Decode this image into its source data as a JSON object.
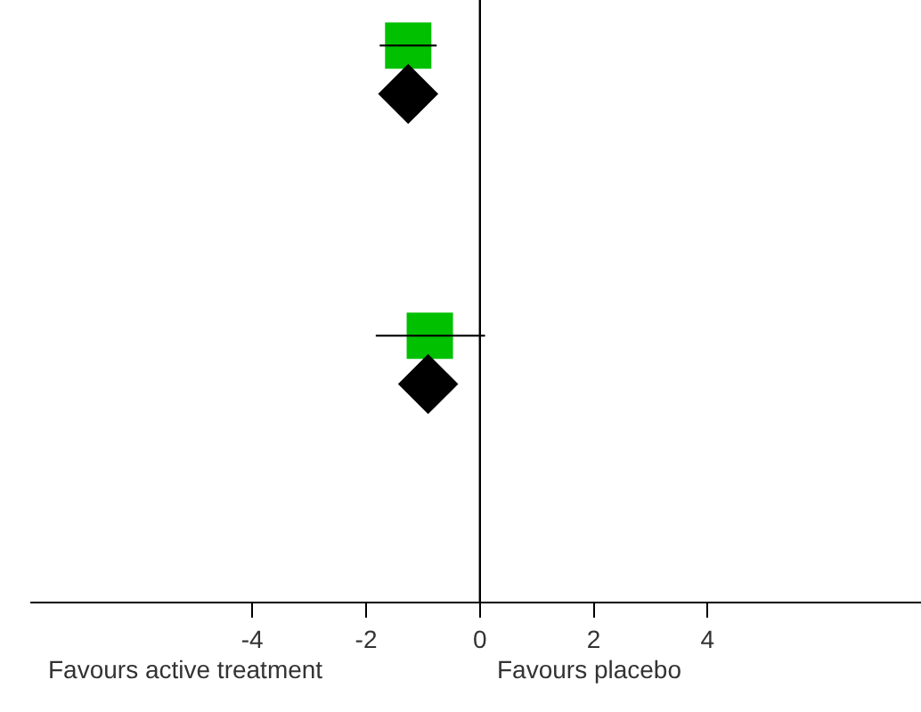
{
  "chart_data": {
    "type": "scatter",
    "orientation": "horizontal",
    "tick_labels": "x",
    "categories": [
      null,
      null,
      null,
      null,
      null,
      null,
      null,
      null,
      null,
      null,
      null,
      null
    ],
    "series": [
      {
        "color": "#00c000",
        "marker": "square",
        "values": [
          -1.26,
          null,
          null,
          null,
          null,
          null,
          -0.88,
          null,
          null,
          null,
          null,
          null
        ],
        "errors": [
          [
            -1.76,
            -0.76
          ],
          null,
          null,
          null,
          null,
          null,
          [
            -1.83,
            0.09
          ],
          null,
          null,
          null,
          null,
          null
        ]
      },
      {
        "color": "#000000",
        "marker": "diamond",
        "values": [
          null,
          -1.26,
          null,
          null,
          null,
          null,
          null,
          -0.91,
          null,
          null,
          null,
          null
        ]
      }
    ],
    "xlim": [
      -7.9,
      7.75
    ],
    "xticks": [
      -4,
      -2,
      0,
      2,
      4
    ],
    "ref_lines": [
      {
        "axis": "x",
        "value": 0,
        "color": "#000000"
      }
    ],
    "annotations": [
      "Favours active treatment",
      "Favours placebo"
    ]
  }
}
